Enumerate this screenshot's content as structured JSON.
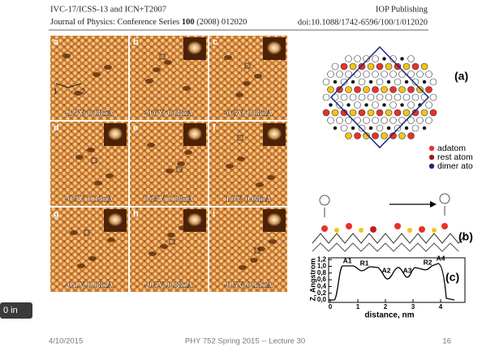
{
  "header": {
    "conference": "IVC-17/ICSS-13 and ICN+T2007",
    "publisher": "IOP Publishing",
    "journal_prefix": "Journal of Physics: Conference Series ",
    "journal_volume": "100",
    "journal_suffix": " (2008) 012020",
    "doi": "doi:10.1088/1742-6596/100/1/012020"
  },
  "figure": {
    "panels": [
      {
        "label": "a",
        "caption": "-1.4V, 0.08nA"
      },
      {
        "label": "b",
        "caption": "-0.6V, 0.08nA"
      },
      {
        "label": "c",
        "caption": "-0.3V, 0.08nA"
      },
      {
        "label": "d",
        "caption": "-0.3V, 0.12nA"
      },
      {
        "label": "e",
        "caption": "0.25V, 0.08nA"
      },
      {
        "label": "f",
        "caption": "1.0V, 0.08nA"
      },
      {
        "label": "g",
        "caption": "-0.1V, 0.08nA"
      },
      {
        "label": "h",
        "caption": "-0.5V, 0.08nA"
      },
      {
        "label": "i",
        "caption": "-0.5V, 0.15nA"
      }
    ],
    "panel_a_markers": [
      "1",
      "2"
    ],
    "structure": {
      "label": "(a)",
      "legend": [
        {
          "text": "adatom",
          "color": "#e8312a"
        },
        {
          "text": "rest atom",
          "color": "#a01818"
        },
        {
          "text": "dimer ato",
          "color": "#1c2a7a"
        }
      ]
    },
    "side_view": {
      "label": "(b)"
    },
    "profile": {
      "label": "(c)",
      "y_label": "Z, Angstrom",
      "x_label": "distance, nm",
      "yticks": [
        "0,0",
        "0,2",
        "0,4",
        "0,6",
        "0,8",
        "1,0",
        "1,2"
      ],
      "xticks": [
        "0",
        "1",
        "2",
        "3",
        "4"
      ],
      "peaks": [
        "A1",
        "R1",
        "A2",
        "A3",
        "R2",
        "A4"
      ]
    }
  },
  "footer": {
    "date": "4/10/2015",
    "title": "PHY 752  Spring 2015 -- Lecture 30",
    "page": "16"
  },
  "overlay": "0 in"
}
